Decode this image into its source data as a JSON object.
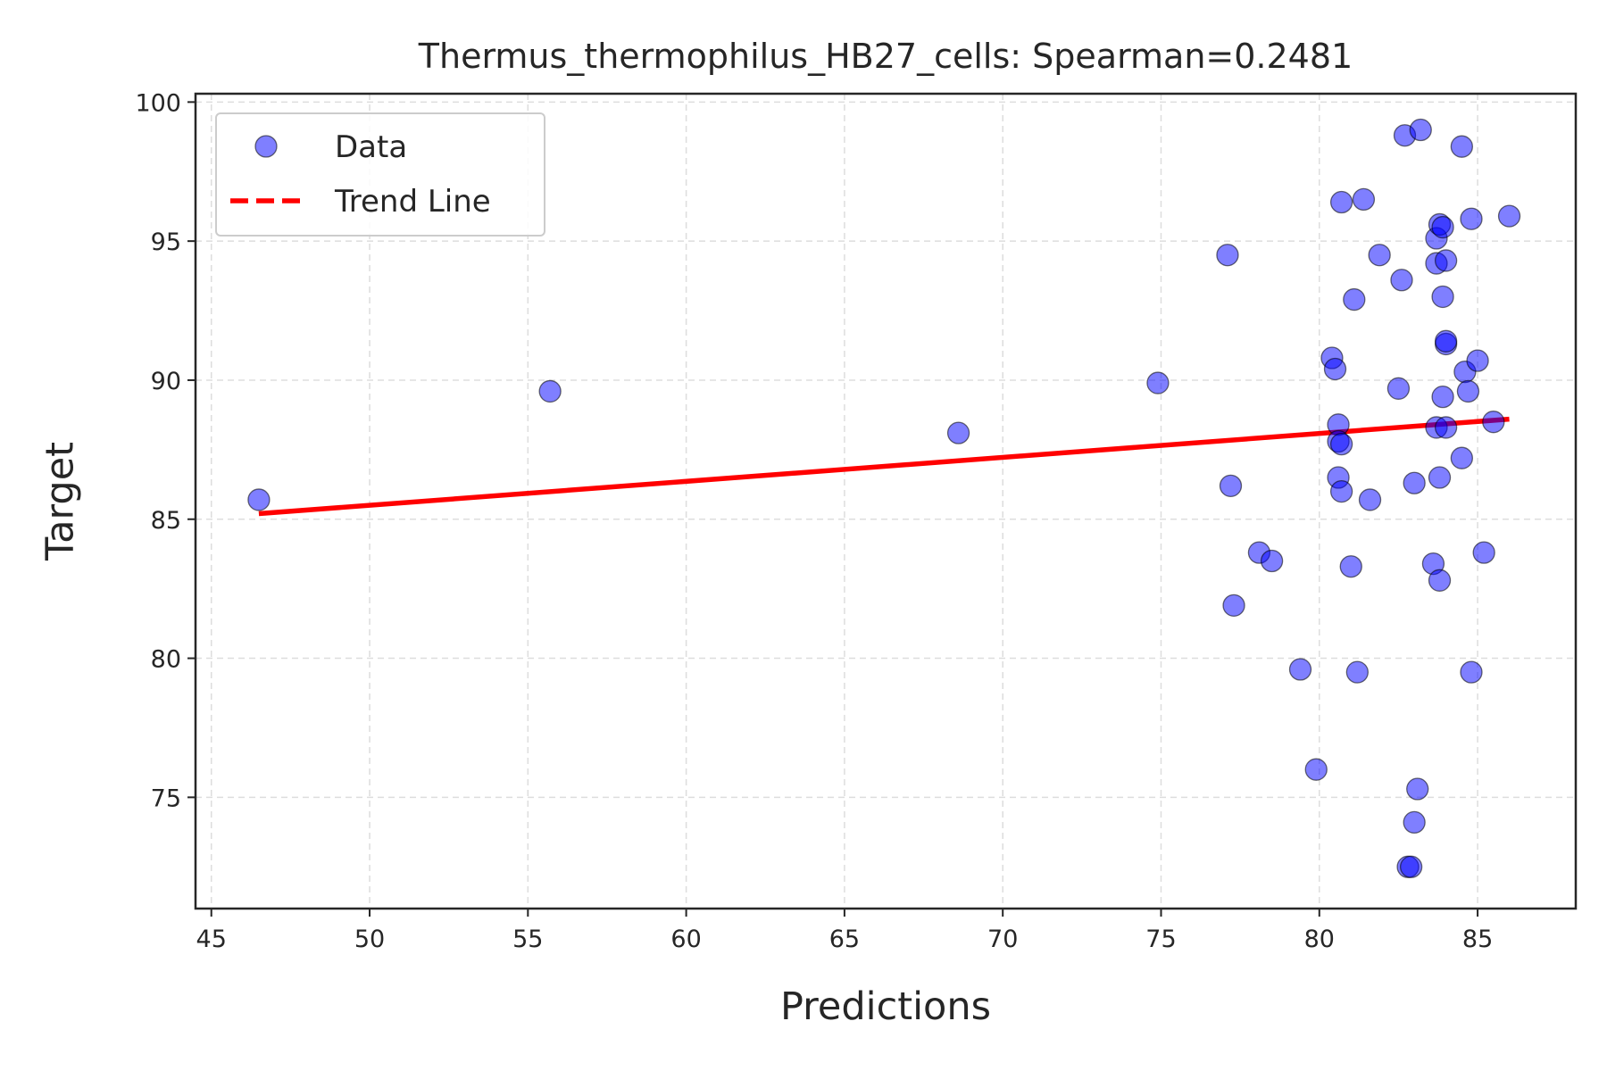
{
  "chart_data": {
    "type": "scatter",
    "title": "Thermus_thermophilus_HB27_cells: Spearman=0.2481",
    "xlabel": "Predictions",
    "ylabel": "Target",
    "xlim": [
      44.5,
      88.1
    ],
    "ylim": [
      71,
      100.3
    ],
    "xticks": [
      45,
      50,
      55,
      60,
      65,
      70,
      75,
      80,
      85
    ],
    "yticks": [
      75,
      80,
      85,
      90,
      95,
      100
    ],
    "grid": true,
    "legend_position": "top-left",
    "series": [
      {
        "name": "Data",
        "kind": "scatter",
        "color": "#0000ff",
        "points": [
          [
            46.5,
            85.7
          ],
          [
            55.7,
            89.6
          ],
          [
            68.6,
            88.1
          ],
          [
            74.9,
            89.9
          ],
          [
            77.1,
            94.5
          ],
          [
            77.2,
            86.2
          ],
          [
            77.3,
            81.9
          ],
          [
            78.1,
            83.8
          ],
          [
            78.5,
            83.5
          ],
          [
            79.4,
            79.6
          ],
          [
            79.9,
            76.0
          ],
          [
            80.4,
            90.8
          ],
          [
            80.5,
            90.4
          ],
          [
            80.6,
            88.4
          ],
          [
            80.6,
            87.8
          ],
          [
            80.7,
            87.7
          ],
          [
            80.6,
            86.5
          ],
          [
            80.7,
            86.0
          ],
          [
            80.7,
            96.4
          ],
          [
            81.0,
            83.3
          ],
          [
            81.1,
            92.9
          ],
          [
            81.2,
            79.5
          ],
          [
            81.4,
            96.5
          ],
          [
            81.6,
            85.7
          ],
          [
            81.9,
            94.5
          ],
          [
            82.5,
            89.7
          ],
          [
            82.6,
            93.6
          ],
          [
            82.7,
            98.8
          ],
          [
            82.8,
            72.5
          ],
          [
            82.9,
            72.5
          ],
          [
            83.0,
            86.3
          ],
          [
            83.0,
            74.1
          ],
          [
            83.1,
            75.3
          ],
          [
            83.2,
            99.0
          ],
          [
            83.6,
            83.4
          ],
          [
            83.7,
            95.1
          ],
          [
            83.7,
            94.2
          ],
          [
            83.7,
            88.3
          ],
          [
            83.8,
            86.5
          ],
          [
            83.8,
            82.8
          ],
          [
            83.8,
            95.6
          ],
          [
            83.9,
            95.5
          ],
          [
            83.9,
            93.0
          ],
          [
            83.9,
            89.4
          ],
          [
            84.0,
            94.3
          ],
          [
            84.0,
            91.3
          ],
          [
            84.0,
            91.4
          ],
          [
            84.0,
            88.3
          ],
          [
            84.5,
            98.4
          ],
          [
            84.5,
            87.2
          ],
          [
            84.6,
            90.3
          ],
          [
            84.7,
            89.6
          ],
          [
            84.8,
            95.8
          ],
          [
            84.8,
            79.5
          ],
          [
            85.0,
            90.7
          ],
          [
            85.2,
            83.8
          ],
          [
            85.5,
            88.5
          ],
          [
            86.0,
            95.9
          ]
        ]
      },
      {
        "name": "Trend Line",
        "kind": "line",
        "color": "#ff0000",
        "points": [
          [
            46.5,
            85.2
          ],
          [
            86.0,
            88.6
          ]
        ]
      }
    ]
  }
}
